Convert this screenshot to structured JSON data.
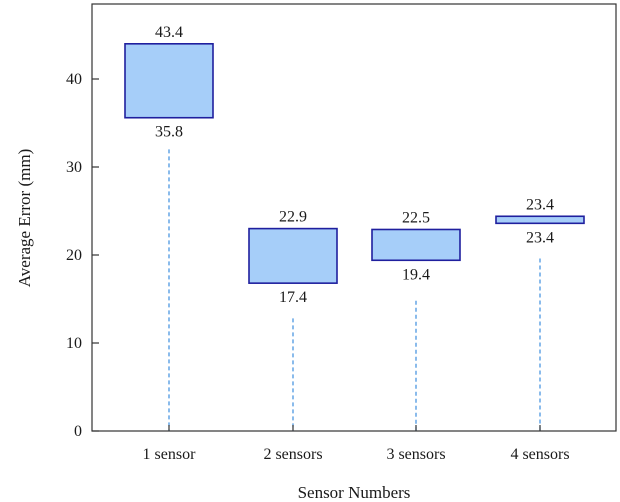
{
  "chart_data": {
    "type": "bar",
    "subtype": "floating-range",
    "xlabel": "Sensor Numbers",
    "ylabel": "Average Error (mm)",
    "ylim": [
      0,
      48
    ],
    "yticks": [
      0,
      10,
      20,
      30,
      40
    ],
    "categories": [
      "1 sensor",
      "2 sensors",
      "3 sensors",
      "4 sensors"
    ],
    "series": [
      {
        "low": [
          35.8,
          17.4,
          19.4,
          23.4
        ],
        "high": [
          43.4,
          22.9,
          22.5,
          23.4
        ],
        "drawn_bottom": [
          35.6,
          16.8,
          19.4,
          23.6
        ],
        "drawn_top": [
          44.0,
          23.0,
          22.9,
          24.4
        ],
        "dashed_line_top": [
          32.0,
          12.8,
          14.8,
          19.6
        ]
      }
    ],
    "grid": false,
    "legend": "none",
    "colors": {
      "bar_fill": "#a6cef9",
      "bar_stroke": "#1f1f9e",
      "dash_line": "#3d8ede",
      "axis": "#333333"
    }
  }
}
